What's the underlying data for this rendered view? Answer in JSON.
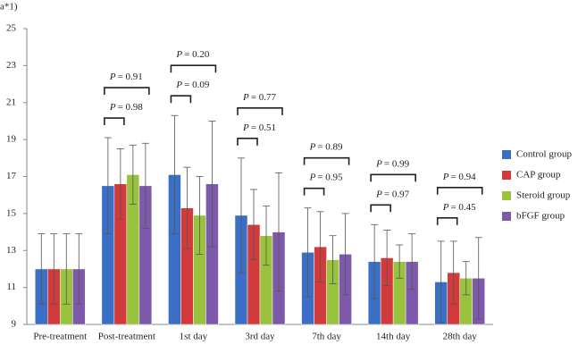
{
  "chart_data": {
    "type": "bar",
    "y_label": "a*1)",
    "categories": [
      "Pre-treatment",
      "Post-treatment",
      "1st day",
      "3rd day",
      "7th day",
      "14th day",
      "28th day"
    ],
    "series": [
      {
        "name": "Control group",
        "color": "#3b6fc6",
        "values": [
          12.0,
          16.5,
          17.1,
          14.9,
          12.9,
          12.4,
          11.3
        ],
        "errors": [
          1.9,
          2.6,
          3.2,
          3.1,
          2.4,
          2.0,
          2.2
        ]
      },
      {
        "name": "CAP group",
        "color": "#d23b3b",
        "values": [
          12.0,
          16.6,
          15.3,
          14.4,
          13.2,
          12.6,
          11.8
        ],
        "errors": [
          1.9,
          1.9,
          2.2,
          1.9,
          1.9,
          1.5,
          1.7
        ]
      },
      {
        "name": "Steroid group",
        "color": "#99c23f",
        "values": [
          12.0,
          17.1,
          14.9,
          13.8,
          12.5,
          12.4,
          11.5
        ],
        "errors": [
          1.9,
          1.6,
          2.1,
          1.6,
          1.3,
          0.9,
          0.9
        ]
      },
      {
        "name": "bFGF group",
        "color": "#7c59a9",
        "values": [
          12.0,
          16.5,
          16.6,
          14.0,
          12.8,
          12.4,
          11.5
        ],
        "errors": [
          1.9,
          2.3,
          3.4,
          3.2,
          2.2,
          1.5,
          2.2
        ]
      }
    ],
    "p_symbol": "P",
    "p_values": [
      null,
      [
        "= 0.98",
        "= 0.91"
      ],
      [
        "= 0.09",
        "= 0.20"
      ],
      [
        "= 0.51",
        "= 0.77"
      ],
      [
        "= 0.95",
        "= 0.89"
      ],
      [
        "= 0.97",
        "= 0.99"
      ],
      [
        "= 0.45",
        "= 0.94"
      ]
    ],
    "ylim": [
      9,
      25
    ],
    "yticks": [
      9,
      11,
      13,
      15,
      17,
      19,
      21,
      23,
      25
    ],
    "grid": false,
    "legend": "right"
  }
}
